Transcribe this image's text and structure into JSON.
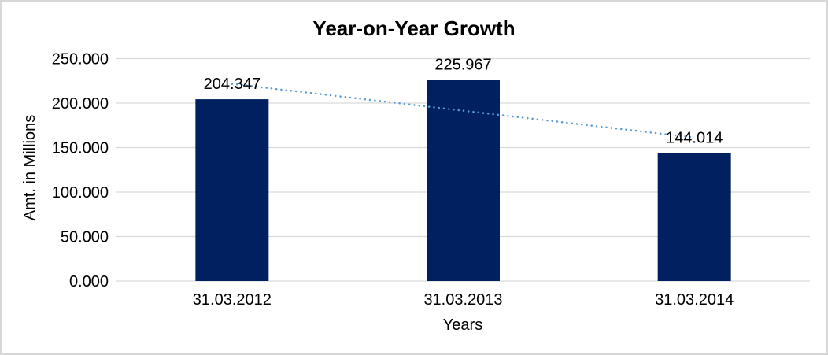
{
  "window": {
    "background_color": "#ffffff",
    "frame_border_color": "#d7d7d7"
  },
  "chart_data": {
    "type": "bar",
    "title": "Year-on-Year Growth",
    "categories": [
      "31.03.2012",
      "31.03.2013",
      "31.03.2014"
    ],
    "values": [
      204.347,
      225.967,
      144.014
    ],
    "data_labels": [
      "204.347",
      "225.967",
      "144.014"
    ],
    "xlabel": "Years",
    "ylabel": "Amt. in Millions",
    "ylim": [
      0,
      250
    ],
    "ytick_interval": 50,
    "ytick_labels": [
      "0.000",
      "50.000",
      "100.000",
      "150.000",
      "200.000",
      "250.000"
    ],
    "grid": true,
    "legend_position": "none",
    "bar_color": "#002060",
    "gridline_color": "#d9d9d9",
    "trendline": {
      "type": "linear",
      "style": "dotted",
      "color": "#5b9bd5"
    },
    "text_color": "#000000"
  }
}
